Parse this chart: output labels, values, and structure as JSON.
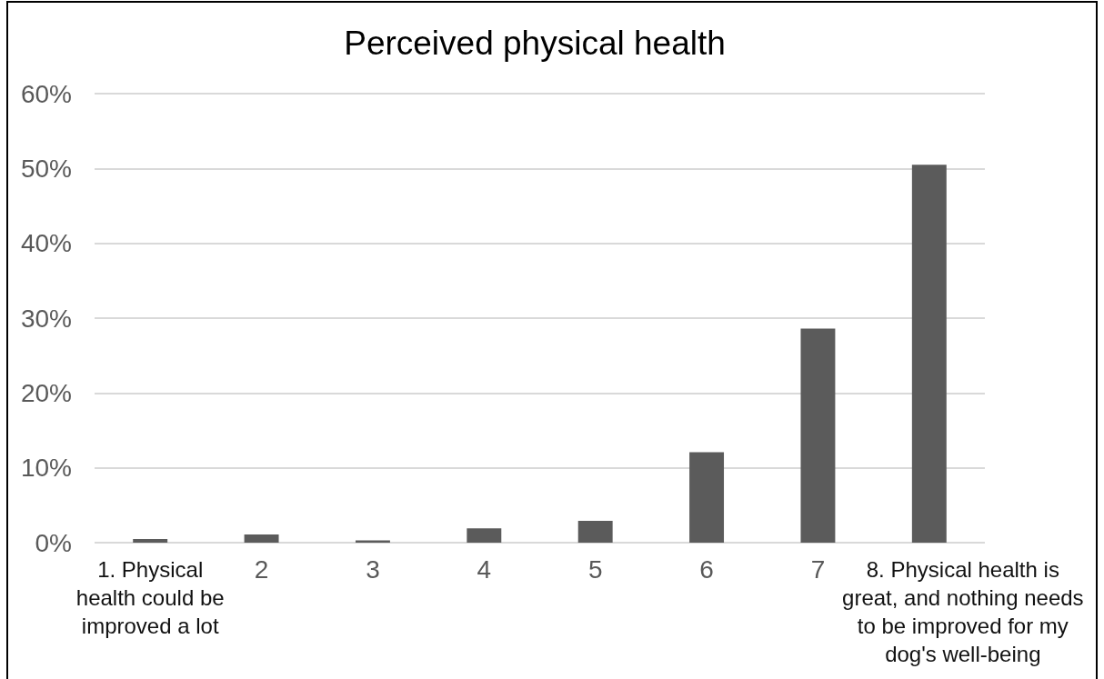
{
  "chart_data": {
    "type": "bar",
    "title": "Perceived physical health",
    "categories": [
      "1. Physical health could be improved a lot",
      "2",
      "3",
      "4",
      "5",
      "6",
      "7",
      "8. Physical health is great, and nothing needs to be improved for my dog's well-being"
    ],
    "values": [
      0.5,
      1.1,
      0.3,
      1.9,
      2.9,
      12.1,
      28.6,
      50.5
    ],
    "color": "#5b5b5b",
    "ylim": [
      0,
      60
    ],
    "yticks": [
      {
        "value": 0,
        "label": "0%"
      },
      {
        "value": 10,
        "label": "10%"
      },
      {
        "value": 20,
        "label": "20%"
      },
      {
        "value": 30,
        "label": "30%"
      },
      {
        "value": 40,
        "label": "40%"
      },
      {
        "value": 50,
        "label": "50%"
      },
      {
        "value": 60,
        "label": "60%"
      }
    ],
    "grid": "y"
  }
}
